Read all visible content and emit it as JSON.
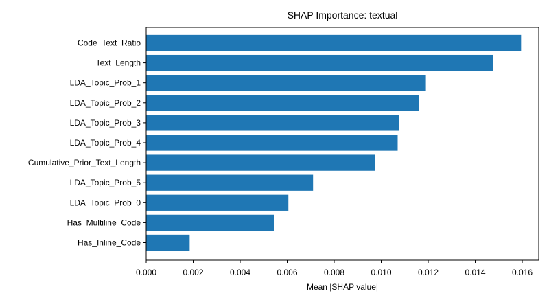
{
  "chart_data": {
    "type": "bar",
    "orientation": "horizontal",
    "title": "SHAP Importance: textual",
    "xlabel": "Mean |SHAP value|",
    "ylabel": "",
    "categories": [
      "Code_Text_Ratio",
      "Text_Length",
      "LDA_Topic_Prob_1",
      "LDA_Topic_Prob_2",
      "LDA_Topic_Prob_3",
      "LDA_Topic_Prob_4",
      "Cumulative_Prior_Text_Length",
      "LDA_Topic_Prob_5",
      "LDA_Topic_Prob_0",
      "Has_Multiline_Code",
      "Has_Inline_Code"
    ],
    "values": [
      0.01595,
      0.01475,
      0.0119,
      0.0116,
      0.01075,
      0.0107,
      0.00975,
      0.0071,
      0.00605,
      0.00545,
      0.00185
    ],
    "xlim": [
      0,
      0.0167
    ],
    "xticks": [
      "0.000",
      "0.002",
      "0.004",
      "0.006",
      "0.008",
      "0.010",
      "0.012",
      "0.014",
      "0.016"
    ],
    "bar_color": "#1f77b4",
    "grid": false,
    "legend": "none"
  }
}
